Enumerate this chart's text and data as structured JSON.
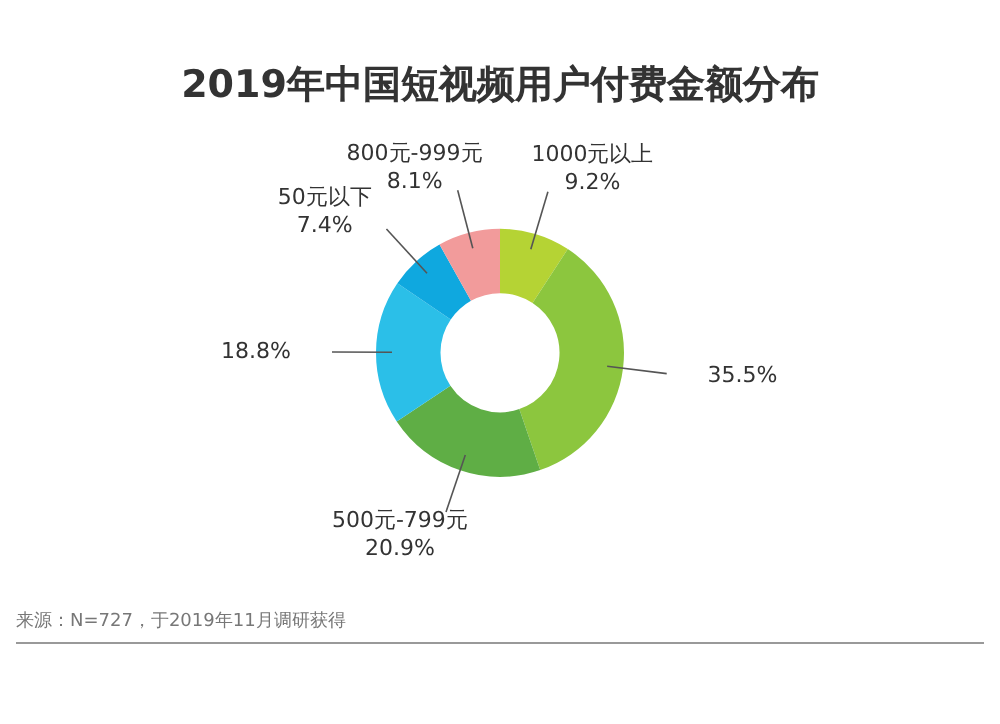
{
  "chart_data": {
    "type": "donut",
    "title": "2019年中国短视频用户付费金额分布",
    "categories": [
      "1000元以上",
      null,
      "500元-799元",
      null,
      "50元以下",
      "800元-999元"
    ],
    "values": [
      9.2,
      35.5,
      20.9,
      18.8,
      7.4,
      8.1
    ],
    "value_labels": [
      "9.2%",
      "35.5%",
      "20.9%",
      "18.8%",
      "7.4%",
      "8.1%"
    ],
    "colors": [
      "#b5d334",
      "#8cc63e",
      "#5fae45",
      "#2bbfe8",
      "#0fa8df",
      "#f29b9b"
    ],
    "legend": false,
    "annotations": [
      "来源：N=727，于2019年11月调研获得"
    ]
  }
}
